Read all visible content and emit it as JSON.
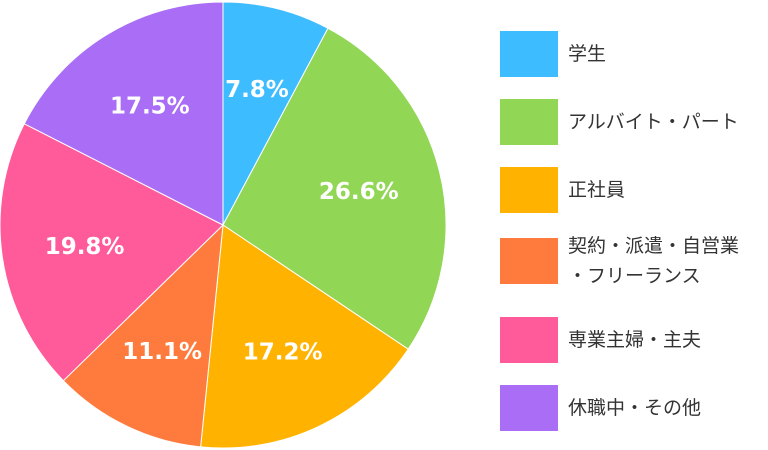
{
  "chart_data": {
    "type": "pie",
    "title": "",
    "categories": [
      "学生",
      "アルバイト・パート",
      "正社員",
      "契約・派遣・自営業・フリーランス",
      "専業主婦・主夫",
      "休職中・その他"
    ],
    "values": [
      7.8,
      26.6,
      17.2,
      11.1,
      19.8,
      17.5
    ],
    "labels": [
      "7.8%",
      "26.6%",
      "17.2%",
      "11.1%",
      "19.8%",
      "17.5%"
    ],
    "colors": [
      "#3dbcff",
      "#92d655",
      "#ffb300",
      "#ff7a3d",
      "#ff5a9a",
      "#a96ef5"
    ],
    "legend_position": "right",
    "start_angle": "12 o'clock",
    "direction": "clockwise",
    "legend": [
      {
        "lines": [
          "学生"
        ]
      },
      {
        "lines": [
          "アルバイト・パート"
        ]
      },
      {
        "lines": [
          "正社員"
        ]
      },
      {
        "lines": [
          "契約・派遣・自営業",
          "・フリーランス"
        ]
      },
      {
        "lines": [
          "専業主婦・主夫"
        ]
      },
      {
        "lines": [
          "休職中・その他"
        ]
      }
    ]
  }
}
